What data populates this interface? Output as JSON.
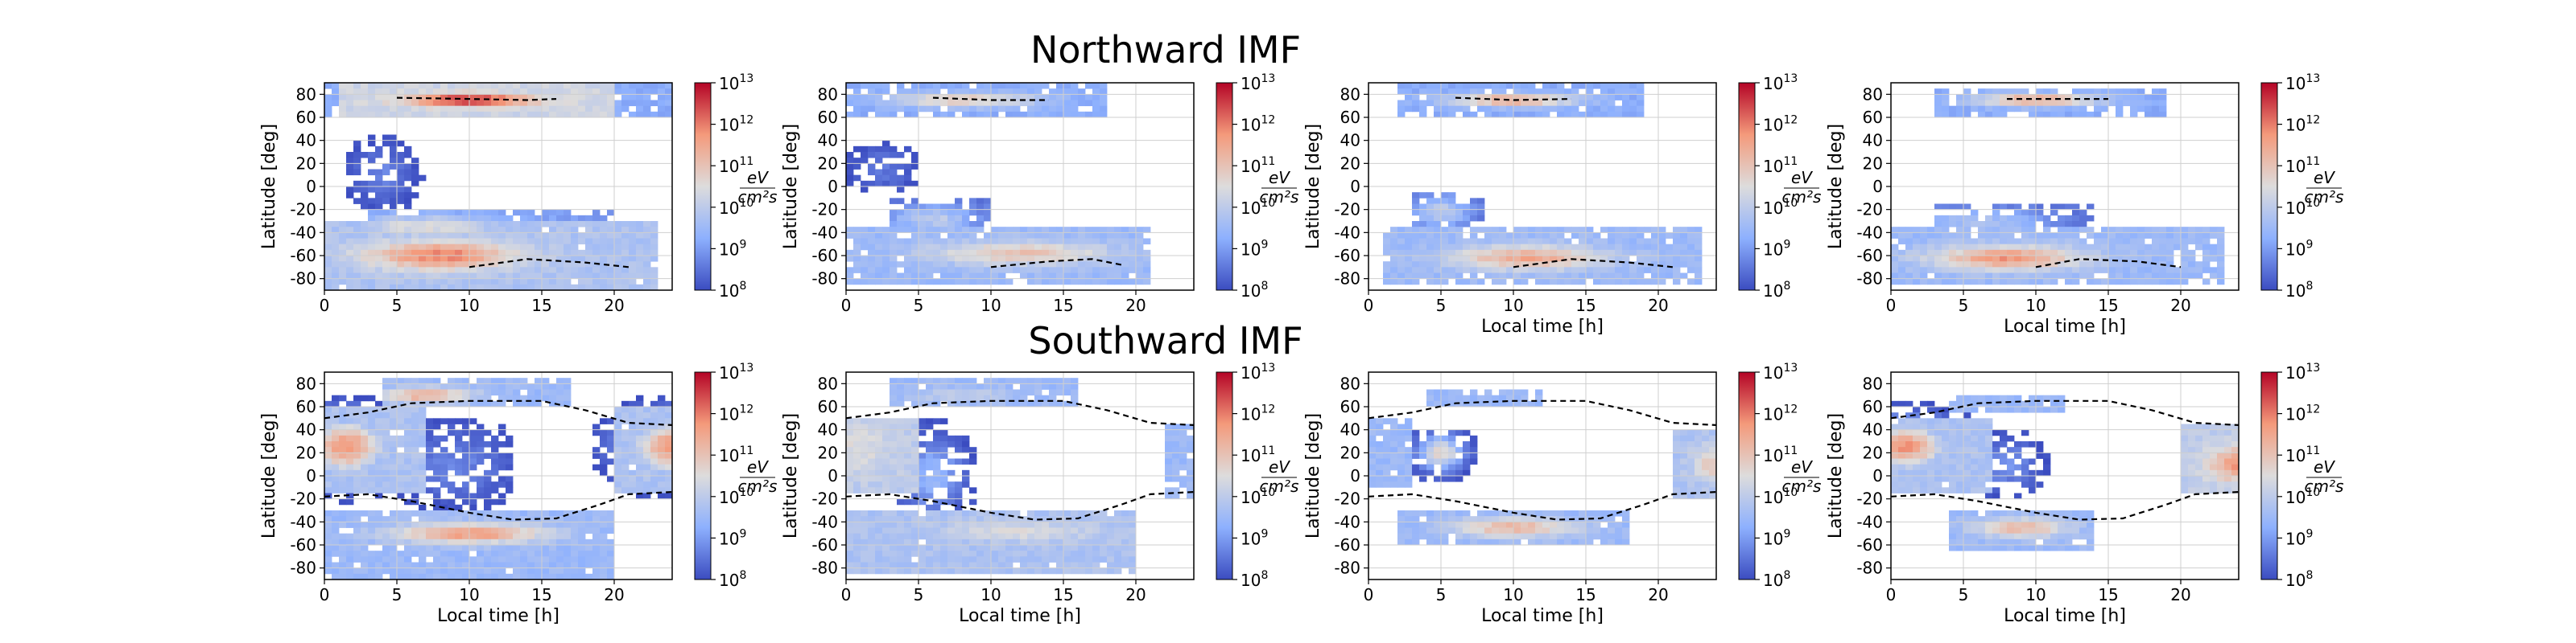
{
  "row_titles": [
    "Northward IMF",
    "Southward IMF"
  ],
  "chart_data": {
    "type": "heatmap",
    "layout": "2 rows x 4 columns of panels",
    "rows": [
      "Northward IMF",
      "Southward IMF"
    ],
    "xlabel": "Local time [h]",
    "ylabel": "Latitude [deg]",
    "xlim": [
      0,
      24
    ],
    "ylim": [
      -90,
      90
    ],
    "xticks": [
      0,
      5,
      10,
      15,
      20
    ],
    "yticks": [
      80,
      60,
      40,
      20,
      0,
      -20,
      -40,
      -60,
      -80
    ],
    "colorbar": {
      "scale": "log",
      "range": [
        100000000.0,
        10000000000000.0
      ],
      "colormap": "coolwarm",
      "tick_bases": [
        "10",
        "10",
        "10",
        "10",
        "10",
        "10"
      ],
      "tick_exponents": [
        "8",
        "9",
        "10",
        "11",
        "12",
        "13"
      ],
      "unit_num": "eV",
      "unit_den": "cm²s",
      "low_color": "#3b4cc0",
      "high_color": "#b40426"
    },
    "grid": true,
    "boundary_line": "dashed black",
    "panels": [
      {
        "row": 0,
        "col": 0,
        "ylabel": "Latitude [deg]",
        "xlabel": "",
        "preset": "N1",
        "dashed": [
          [
            [
              5,
              77
            ],
            [
              10,
              76
            ],
            [
              14,
              75
            ],
            [
              16,
              76
            ]
          ],
          [
            [
              10,
              -70
            ],
            [
              14,
              -63
            ],
            [
              18,
              -66
            ],
            [
              21,
              -70
            ]
          ]
        ]
      },
      {
        "row": 0,
        "col": 1,
        "ylabel": "Latitude [deg]",
        "xlabel": "",
        "preset": "N2",
        "dashed": [
          [
            [
              6,
              77
            ],
            [
              10,
              75
            ],
            [
              14,
              75
            ]
          ],
          [
            [
              10,
              -70
            ],
            [
              14,
              -65
            ],
            [
              17,
              -63
            ],
            [
              19,
              -68
            ]
          ]
        ]
      },
      {
        "row": 0,
        "col": 2,
        "ylabel": "Latitude [deg]",
        "xlabel": "Local time [h]",
        "preset": "N3",
        "dashed": [
          [
            [
              6,
              77
            ],
            [
              10,
              75
            ],
            [
              14,
              76
            ]
          ],
          [
            [
              10,
              -70
            ],
            [
              14,
              -63
            ],
            [
              18,
              -66
            ],
            [
              21,
              -70
            ]
          ]
        ]
      },
      {
        "row": 0,
        "col": 3,
        "ylabel": "Latitude [deg]",
        "xlabel": "Local time [h]",
        "preset": "N4",
        "dashed": [
          [
            [
              8,
              76
            ],
            [
              12,
              76
            ],
            [
              15,
              76
            ]
          ],
          [
            [
              10,
              -70
            ],
            [
              13,
              -63
            ],
            [
              17,
              -65
            ],
            [
              20,
              -70
            ]
          ]
        ]
      },
      {
        "row": 1,
        "col": 0,
        "ylabel": "Latitude [deg]",
        "xlabel": "Local time [h]",
        "preset": "S1",
        "dashed": [
          [
            [
              0,
              50
            ],
            [
              3,
              55
            ],
            [
              6,
              63
            ],
            [
              10,
              65
            ],
            [
              15,
              65
            ],
            [
              18,
              57
            ],
            [
              21,
              46
            ],
            [
              24,
              44
            ]
          ],
          [
            [
              0,
              -18
            ],
            [
              3,
              -16
            ],
            [
              6,
              -22
            ],
            [
              10,
              -32
            ],
            [
              13,
              -38
            ],
            [
              16,
              -37
            ],
            [
              19,
              -25
            ],
            [
              21,
              -16
            ],
            [
              24,
              -14
            ]
          ]
        ]
      },
      {
        "row": 1,
        "col": 1,
        "ylabel": "Latitude [deg]",
        "xlabel": "Local time [h]",
        "preset": "S2",
        "dashed": [
          [
            [
              0,
              50
            ],
            [
              3,
              55
            ],
            [
              6,
              63
            ],
            [
              10,
              65
            ],
            [
              15,
              65
            ],
            [
              18,
              57
            ],
            [
              21,
              46
            ],
            [
              24,
              44
            ]
          ],
          [
            [
              0,
              -18
            ],
            [
              3,
              -16
            ],
            [
              6,
              -22
            ],
            [
              10,
              -32
            ],
            [
              13,
              -38
            ],
            [
              16,
              -37
            ],
            [
              19,
              -25
            ],
            [
              21,
              -16
            ],
            [
              24,
              -14
            ]
          ]
        ]
      },
      {
        "row": 1,
        "col": 2,
        "ylabel": "Latitude [deg]",
        "xlabel": "Local time [h]",
        "preset": "S3",
        "dashed": [
          [
            [
              0,
              50
            ],
            [
              3,
              55
            ],
            [
              6,
              63
            ],
            [
              10,
              65
            ],
            [
              15,
              65
            ],
            [
              18,
              57
            ],
            [
              21,
              46
            ],
            [
              24,
              44
            ]
          ],
          [
            [
              0,
              -18
            ],
            [
              3,
              -16
            ],
            [
              6,
              -22
            ],
            [
              10,
              -32
            ],
            [
              13,
              -38
            ],
            [
              16,
              -37
            ],
            [
              19,
              -25
            ],
            [
              21,
              -16
            ],
            [
              24,
              -14
            ]
          ]
        ]
      },
      {
        "row": 1,
        "col": 3,
        "ylabel": "Latitude [deg]",
        "xlabel": "Local time [h]",
        "preset": "S4",
        "dashed": [
          [
            [
              0,
              50
            ],
            [
              3,
              55
            ],
            [
              6,
              63
            ],
            [
              10,
              65
            ],
            [
              15,
              65
            ],
            [
              18,
              57
            ],
            [
              21,
              46
            ],
            [
              24,
              44
            ]
          ],
          [
            [
              0,
              -18
            ],
            [
              3,
              -16
            ],
            [
              6,
              -22
            ],
            [
              10,
              -32
            ],
            [
              13,
              -38
            ],
            [
              16,
              -37
            ],
            [
              19,
              -25
            ],
            [
              21,
              -16
            ],
            [
              24,
              -14
            ]
          ]
        ]
      }
    ]
  }
}
